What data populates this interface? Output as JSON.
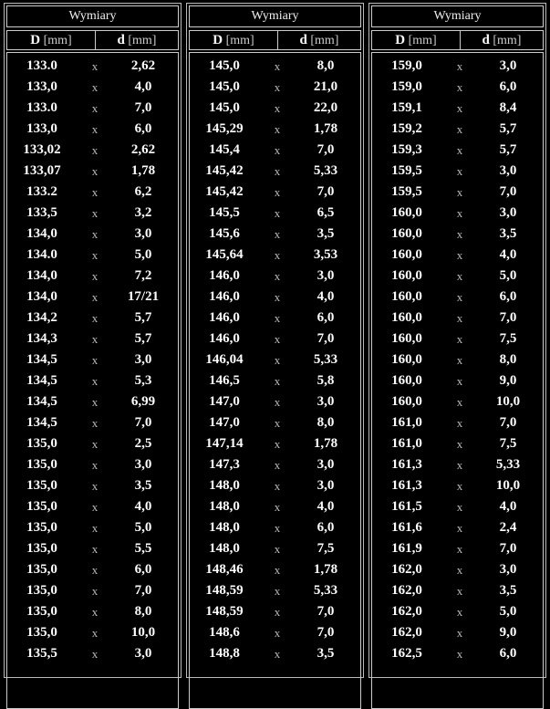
{
  "panels": [
    {
      "title": "Wymiary",
      "header_D": "D",
      "header_d": "d",
      "unit": "[mm]",
      "rows": [
        [
          "133.0",
          "2,62"
        ],
        [
          "133,0",
          "4,0"
        ],
        [
          "133.0",
          "7,0"
        ],
        [
          "133,0",
          "6,0"
        ],
        [
          "133,02",
          "2,62"
        ],
        [
          "133,07",
          "1,78"
        ],
        [
          "133.2",
          "6,2"
        ],
        [
          "133,5",
          "3,2"
        ],
        [
          "134,0",
          "3,0"
        ],
        [
          "134.0",
          "5,0"
        ],
        [
          "134,0",
          "7,2"
        ],
        [
          "134,0",
          "17/21"
        ],
        [
          "134,2",
          "5,7"
        ],
        [
          "134,3",
          "5,7"
        ],
        [
          "134,5",
          "3,0"
        ],
        [
          "134,5",
          "5,3"
        ],
        [
          "134,5",
          "6,99"
        ],
        [
          "134,5",
          "7,0"
        ],
        [
          "135,0",
          "2,5"
        ],
        [
          "135,0",
          "3,0"
        ],
        [
          "135,0",
          "3,5"
        ],
        [
          "135,0",
          "4,0"
        ],
        [
          "135,0",
          "5,0"
        ],
        [
          "135,0",
          "5,5"
        ],
        [
          "135,0",
          "6,0"
        ],
        [
          "135,0",
          "7,0"
        ],
        [
          "135,0",
          "8,0"
        ],
        [
          "135,0",
          "10,0"
        ],
        [
          "135,5",
          "3,0"
        ]
      ]
    },
    {
      "title": "Wymiary",
      "header_D": "D",
      "header_d": "d",
      "unit": "[mm]",
      "rows": [
        [
          "145,0",
          "8,0"
        ],
        [
          "145,0",
          "21,0"
        ],
        [
          "145,0",
          "22,0"
        ],
        [
          "145,29",
          "1,78"
        ],
        [
          "145,4",
          "7,0"
        ],
        [
          "145,42",
          "5,33"
        ],
        [
          "145,42",
          "7,0"
        ],
        [
          "145,5",
          "6,5"
        ],
        [
          "145,6",
          "3,5"
        ],
        [
          "145,64",
          "3,53"
        ],
        [
          "146,0",
          "3,0"
        ],
        [
          "146,0",
          "4,0"
        ],
        [
          "146,0",
          "6,0"
        ],
        [
          "146,0",
          "7,0"
        ],
        [
          "146,04",
          "5,33"
        ],
        [
          "146,5",
          "5,8"
        ],
        [
          "147,0",
          "3,0"
        ],
        [
          "147,0",
          "8,0"
        ],
        [
          "147,14",
          "1,78"
        ],
        [
          "147,3",
          "3,0"
        ],
        [
          "148,0",
          "3,0"
        ],
        [
          "148,0",
          "4,0"
        ],
        [
          "148,0",
          "6,0"
        ],
        [
          "148,0",
          "7,5"
        ],
        [
          "148,46",
          "1,78"
        ],
        [
          "148,59",
          "5,33"
        ],
        [
          "148,59",
          "7,0"
        ],
        [
          "148,6",
          "7,0"
        ],
        [
          "148,8",
          "3,5"
        ]
      ]
    },
    {
      "title": "Wymiary",
      "header_D": "D",
      "header_d": "d",
      "unit": "[mm]",
      "rows": [
        [
          "159,0",
          "3,0"
        ],
        [
          "159,0",
          "6,0"
        ],
        [
          "159,1",
          "8,4"
        ],
        [
          "159,2",
          "5,7"
        ],
        [
          "159,3",
          "5,7"
        ],
        [
          "159,5",
          "3,0"
        ],
        [
          "159,5",
          "7,0"
        ],
        [
          "160,0",
          "3,0"
        ],
        [
          "160,0",
          "3,5"
        ],
        [
          "160,0",
          "4,0"
        ],
        [
          "160,0",
          "5,0"
        ],
        [
          "160,0",
          "6,0"
        ],
        [
          "160,0",
          "7,0"
        ],
        [
          "160,0",
          "7,5"
        ],
        [
          "160,0",
          "8,0"
        ],
        [
          "160,0",
          "9,0"
        ],
        [
          "160,0",
          "10,0"
        ],
        [
          "161,0",
          "7,0"
        ],
        [
          "161,0",
          "7,5"
        ],
        [
          "161,3",
          "5,33"
        ],
        [
          "161,3",
          "10,0"
        ],
        [
          "161,5",
          "4,0"
        ],
        [
          "161,6",
          "2,4"
        ],
        [
          "161,9",
          "7,0"
        ],
        [
          "162,0",
          "3,0"
        ],
        [
          "162,0",
          "3,5"
        ],
        [
          "162,0",
          "5,0"
        ],
        [
          "162,0",
          "9,0"
        ],
        [
          "162,5",
          "6,0"
        ]
      ]
    }
  ],
  "separator": "x"
}
